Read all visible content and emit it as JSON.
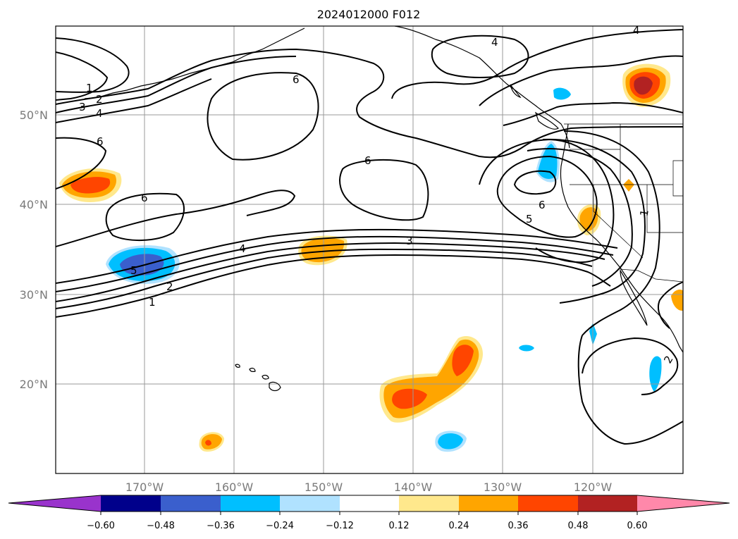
{
  "title": "2024012000 F012",
  "lat_labels": [
    "50°N",
    "40°N",
    "30°N",
    "20°N"
  ],
  "lon_labels": [
    "170°W",
    "160°W",
    "150°W",
    "140°W",
    "130°W",
    "120°W"
  ],
  "colorbar": {
    "ticks": [
      "−0.60",
      "−0.48",
      "−0.36",
      "−0.24",
      "−0.12",
      "0.12",
      "0.24",
      "0.36",
      "0.48",
      "0.60"
    ],
    "colors": [
      "#9933cc",
      "#00008b",
      "#3a5fcd",
      "#00bfff",
      "#b0e2ff",
      "#ffffff",
      "#ffe88c",
      "#ffa500",
      "#ff4500",
      "#b22222",
      "#ff88aa"
    ]
  },
  "contour_labels": {
    "l1a": "1",
    "l2a": "2",
    "l3a": "3",
    "l4a": "4",
    "l6a": "6",
    "l6b": "6",
    "l6c": "6",
    "l6d": "6",
    "l4b": "4",
    "l4c": "4",
    "l4d": "4",
    "l5a": "5",
    "l2b": "2",
    "l1b": "1",
    "l3b": "3",
    "l6e": "6",
    "l5b": "5",
    "l1c": "1",
    "l2c": "2"
  }
}
